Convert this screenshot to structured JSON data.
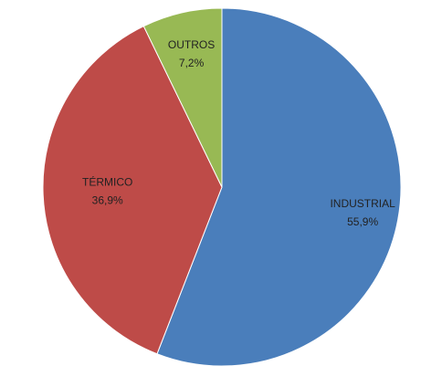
{
  "chart_data": {
    "type": "pie",
    "categories": [
      "INDUSTRIAL",
      "TÉRMICO",
      "OUTROS"
    ],
    "values": [
      55.9,
      36.9,
      7.2
    ],
    "value_labels": [
      "55,9%",
      "36,9%",
      "7,2%"
    ],
    "colors": [
      "#4a7ebb",
      "#be4b48",
      "#98b954"
    ]
  }
}
